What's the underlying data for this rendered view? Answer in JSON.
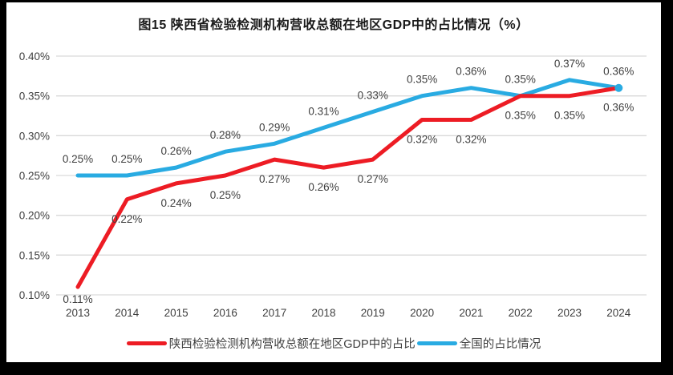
{
  "window": {
    "frame_color": "#000000",
    "panel_color": "#ffffff"
  },
  "chart_data": {
    "type": "line",
    "title": "图15 陕西省检验检测机构营收总额在地区GDP中的占比情况（%）",
    "x": [
      "2013",
      "2014",
      "2015",
      "2016",
      "2017",
      "2018",
      "2019",
      "2020",
      "2021",
      "2022",
      "2023",
      "2024"
    ],
    "xlabel": "",
    "ylabel": "",
    "ylim": [
      0.1,
      0.4
    ],
    "y_tick_labels": [
      "0.40%",
      "0.35%",
      "0.30%",
      "0.25%",
      "0.20%",
      "0.15%",
      "0.10%"
    ],
    "y_tick_values": [
      0.4,
      0.35,
      0.3,
      0.25,
      0.2,
      0.15,
      0.1
    ],
    "grid": true,
    "legend_position": "bottom",
    "series": [
      {
        "name": "陕西检验检测机构营收总额在地区GDP中的占比",
        "color": "#ed1c24",
        "label_side": "below",
        "values": [
          0.11,
          0.22,
          0.24,
          0.25,
          0.27,
          0.26,
          0.27,
          0.32,
          0.32,
          0.35,
          0.35,
          0.36
        ],
        "point_labels": [
          "0.11%",
          "0.22%",
          "0.24%",
          "0.25%",
          "0.27%",
          "0.26%",
          "0.27%",
          "0.32%",
          "0.32%",
          "0.35%",
          "0.35%",
          "0.36%"
        ]
      },
      {
        "name": "全国的占比情况",
        "color": "#29abe2",
        "label_side": "above",
        "values": [
          0.25,
          0.25,
          0.26,
          0.28,
          0.29,
          0.31,
          0.33,
          0.35,
          0.36,
          0.35,
          0.37,
          0.36
        ],
        "point_labels": [
          "0.25%",
          "0.25%",
          "0.26%",
          "0.28%",
          "0.29%",
          "0.31%",
          "0.33%",
          "0.35%",
          "0.36%",
          "0.35%",
          "0.37%",
          "0.36%"
        ]
      }
    ],
    "colors": {
      "gridline": "#d9d9d9",
      "axis_text": "#3f3f3f",
      "data_label_text": "#3f3f3f",
      "title_text": "#1a1a1a"
    }
  }
}
